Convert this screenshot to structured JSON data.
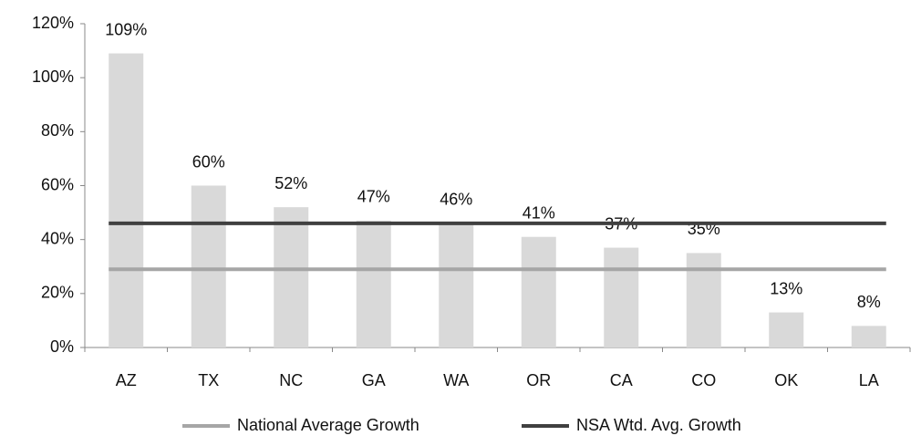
{
  "chart_data": {
    "type": "bar",
    "categories": [
      "AZ",
      "TX",
      "NC",
      "GA",
      "WA",
      "OR",
      "CA",
      "CO",
      "OK",
      "LA"
    ],
    "values": [
      109,
      60,
      52,
      47,
      46,
      41,
      37,
      35,
      13,
      8
    ],
    "value_labels": [
      "109%",
      "60%",
      "52%",
      "47%",
      "46%",
      "41%",
      "37%",
      "35%",
      "13%",
      "8%"
    ],
    "color": "#d9d9d9",
    "ylim": [
      0,
      120
    ],
    "yticks": [
      {
        "value": 0,
        "label": "0%"
      },
      {
        "value": 20,
        "label": "20%"
      },
      {
        "value": 40,
        "label": "40%"
      },
      {
        "value": 60,
        "label": "60%"
      },
      {
        "value": 80,
        "label": "80%"
      },
      {
        "value": 100,
        "label": "100%"
      },
      {
        "value": 120,
        "label": "120%"
      }
    ],
    "reference_lines": [
      {
        "name": "National Average Growth",
        "color": "#a6a6a6",
        "value": 29
      },
      {
        "name": "NSA Wtd. Avg. Growth",
        "color": "#404040",
        "value": 46
      }
    ],
    "legend": "bottom"
  }
}
